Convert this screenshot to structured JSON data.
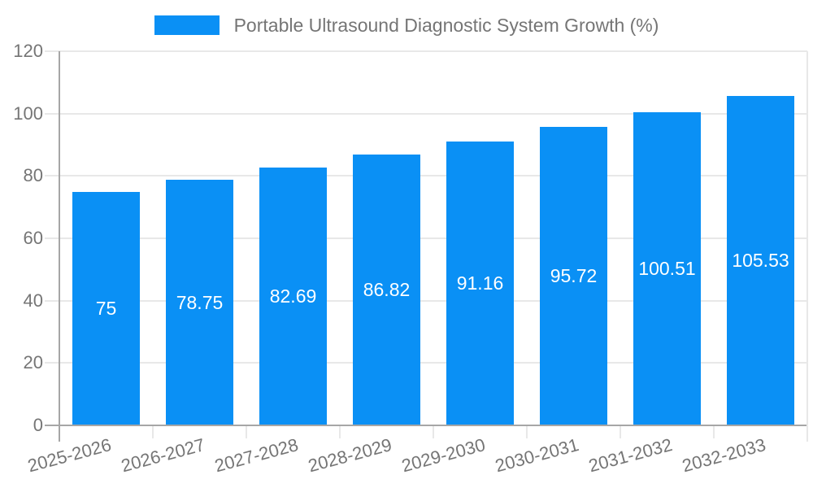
{
  "chart_data": {
    "type": "bar",
    "title": "Portable Ultrasound Diagnostic System Growth (%)",
    "categories": [
      "2025-2026",
      "2026-2027",
      "2027-2028",
      "2028-2029",
      "2029-2030",
      "2030-2031",
      "2031-2032",
      "2032-2033"
    ],
    "values": [
      75,
      78.75,
      82.69,
      86.82,
      91.16,
      95.72,
      100.51,
      105.53
    ],
    "bar_labels": [
      "75",
      "78.75",
      "82.69",
      "86.82",
      "91.16",
      "95.72",
      "100.51",
      "105.53"
    ],
    "ylim": [
      0,
      120
    ],
    "yticks": [
      0,
      20,
      40,
      60,
      80,
      100,
      120
    ],
    "ytick_labels": [
      "0",
      "20",
      "40",
      "60",
      "80",
      "100",
      "120"
    ],
    "grid": true,
    "legend_position": "top-center",
    "xlabel": "",
    "ylabel": "",
    "colors": {
      "bar": "#0a90f5",
      "axis_text": "#757575",
      "title_text": "#757575",
      "bar_value_text": "#ffffff",
      "gridline": "#e8e8e8",
      "axis_line": "#a6a6a6",
      "background": "#ffffff"
    }
  }
}
